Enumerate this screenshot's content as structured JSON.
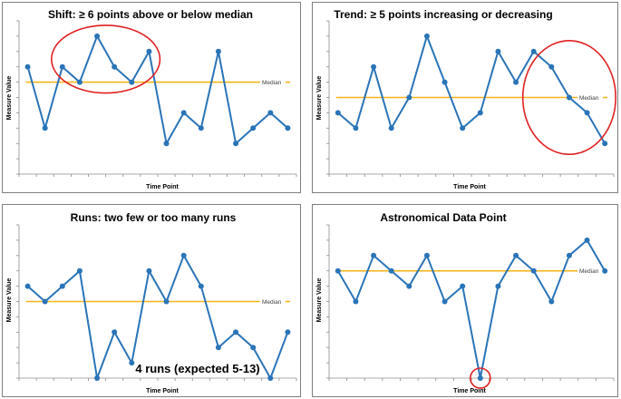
{
  "colors": {
    "series": "#2a74b8",
    "median": "#f2b51b",
    "highlight": "#e02020",
    "axis": "#8c8c8c"
  },
  "chart_data": [
    {
      "type": "line",
      "title": "Shift:  ≥ 6 points above or below median",
      "xlabel": "Time Point",
      "ylabel": "Measure Value",
      "median_label": "Median",
      "median": 6,
      "ylim": [
        0,
        10
      ],
      "grid": false,
      "values": [
        7,
        3,
        7,
        6,
        9,
        7,
        6,
        8,
        2,
        4,
        3,
        8,
        2,
        3,
        4,
        3
      ],
      "highlight": {
        "shape": "ellipse",
        "from_index": 2,
        "to_index": 7
      },
      "annotation": ""
    },
    {
      "type": "line",
      "title": "Trend:  ≥ 5 points increasing or decreasing",
      "xlabel": "Time Point",
      "ylabel": "Measure Value",
      "median_label": "Median",
      "median": 5,
      "ylim": [
        0,
        10
      ],
      "grid": false,
      "values": [
        4,
        3,
        7,
        3,
        5,
        9,
        6,
        3,
        4,
        8,
        6,
        8,
        7,
        5,
        4,
        2
      ],
      "highlight": {
        "shape": "ellipse",
        "from_index": 11,
        "to_index": 15
      },
      "annotation": ""
    },
    {
      "type": "line",
      "title": "Runs:  two few or too many runs",
      "xlabel": "Time Point",
      "ylabel": "Measure Value",
      "median_label": "Median",
      "median": 5,
      "ylim": [
        0,
        10
      ],
      "grid": false,
      "values": [
        6,
        5,
        6,
        7,
        0,
        3,
        1,
        7,
        5,
        8,
        6,
        2,
        3,
        2,
        0,
        3
      ],
      "highlight": null,
      "annotation": "4 runs (expected 5-13)"
    },
    {
      "type": "line",
      "title": "Astronomical Data Point",
      "xlabel": "Time Point",
      "ylabel": "Measure Value",
      "median_label": "Median",
      "median": 7,
      "ylim": [
        0,
        10
      ],
      "grid": false,
      "values": [
        7,
        5,
        8,
        7,
        6,
        8,
        5,
        6,
        0,
        6,
        8,
        7,
        5,
        8,
        9,
        7
      ],
      "highlight": {
        "shape": "circle",
        "from_index": 8,
        "to_index": 8
      },
      "annotation": ""
    }
  ]
}
